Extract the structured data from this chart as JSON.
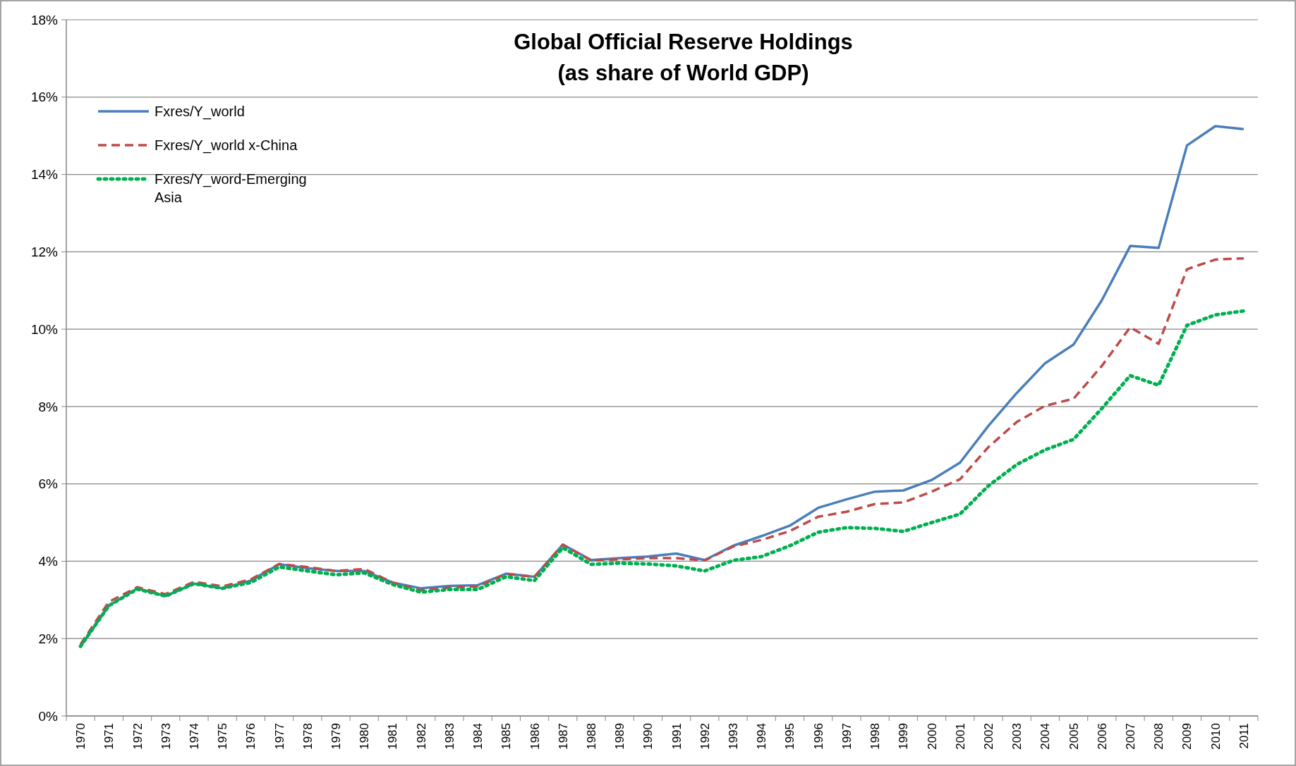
{
  "chart_data": {
    "type": "line",
    "title": "Global Official Reserve Holdings\n(as share of World GDP)",
    "categories": [
      "1970",
      "1971",
      "1972",
      "1973",
      "1974",
      "1975",
      "1976",
      "1977",
      "1978",
      "1979",
      "1980",
      "1981",
      "1982",
      "1983",
      "1984",
      "1985",
      "1986",
      "1987",
      "1988",
      "1989",
      "1990",
      "1991",
      "1992",
      "1993",
      "1994",
      "1995",
      "1996",
      "1997",
      "1998",
      "1999",
      "2000",
      "2001",
      "2002",
      "2003",
      "2004",
      "2005",
      "2006",
      "2007",
      "2008",
      "2009",
      "2010",
      "2011"
    ],
    "series": [
      {
        "name": "Fxres/Y_world",
        "color": "#4a7ebb",
        "line_style": "solid",
        "values": [
          1.8,
          2.85,
          3.3,
          3.1,
          3.42,
          3.3,
          3.5,
          3.92,
          3.82,
          3.75,
          3.75,
          3.45,
          3.3,
          3.36,
          3.38,
          3.68,
          3.6,
          4.43,
          4.03,
          4.08,
          4.12,
          4.2,
          4.03,
          4.4,
          4.65,
          4.92,
          5.38,
          5.6,
          5.8,
          5.83,
          6.1,
          6.55,
          7.5,
          8.35,
          9.12,
          9.6,
          10.75,
          12.15,
          12.1,
          14.75,
          15.25,
          15.17
        ]
      },
      {
        "name": "Fxres/Y_world x-China",
        "color": "#be4b48",
        "line_style": "dashed",
        "values": [
          1.85,
          2.95,
          3.33,
          3.15,
          3.47,
          3.35,
          3.53,
          3.93,
          3.85,
          3.75,
          3.8,
          3.45,
          3.25,
          3.32,
          3.35,
          3.67,
          3.6,
          4.43,
          4.02,
          4.05,
          4.08,
          4.08,
          4.02,
          4.38,
          4.55,
          4.78,
          5.15,
          5.28,
          5.48,
          5.52,
          5.8,
          6.12,
          6.95,
          7.6,
          8.02,
          8.2,
          9.05,
          10.05,
          9.62,
          11.55,
          11.8,
          11.83
        ]
      },
      {
        "name": "Fxres/Y_word-Emerging Asia",
        "color": "#00b050",
        "line_style": "dotted",
        "values": [
          1.8,
          2.85,
          3.28,
          3.1,
          3.42,
          3.3,
          3.45,
          3.85,
          3.75,
          3.65,
          3.7,
          3.4,
          3.2,
          3.27,
          3.27,
          3.6,
          3.5,
          4.35,
          3.92,
          3.95,
          3.93,
          3.88,
          3.75,
          4.02,
          4.12,
          4.4,
          4.75,
          4.87,
          4.85,
          4.77,
          5.0,
          5.22,
          5.95,
          6.5,
          6.88,
          7.15,
          7.95,
          8.8,
          8.55,
          10.1,
          10.37,
          10.47
        ]
      }
    ],
    "ylim": [
      0,
      18
    ],
    "yticks": [
      {
        "value": 0,
        "label": "0%"
      },
      {
        "value": 2,
        "label": "2%"
      },
      {
        "value": 4,
        "label": "4%"
      },
      {
        "value": 6,
        "label": "6%"
      },
      {
        "value": 8,
        "label": "8%"
      },
      {
        "value": 10,
        "label": "10%"
      },
      {
        "value": 12,
        "label": "12%"
      },
      {
        "value": 14,
        "label": "14%"
      },
      {
        "value": 16,
        "label": "16%"
      },
      {
        "value": 18,
        "label": "18%"
      }
    ],
    "grid": "y",
    "legend": "top left",
    "marker": "none"
  }
}
